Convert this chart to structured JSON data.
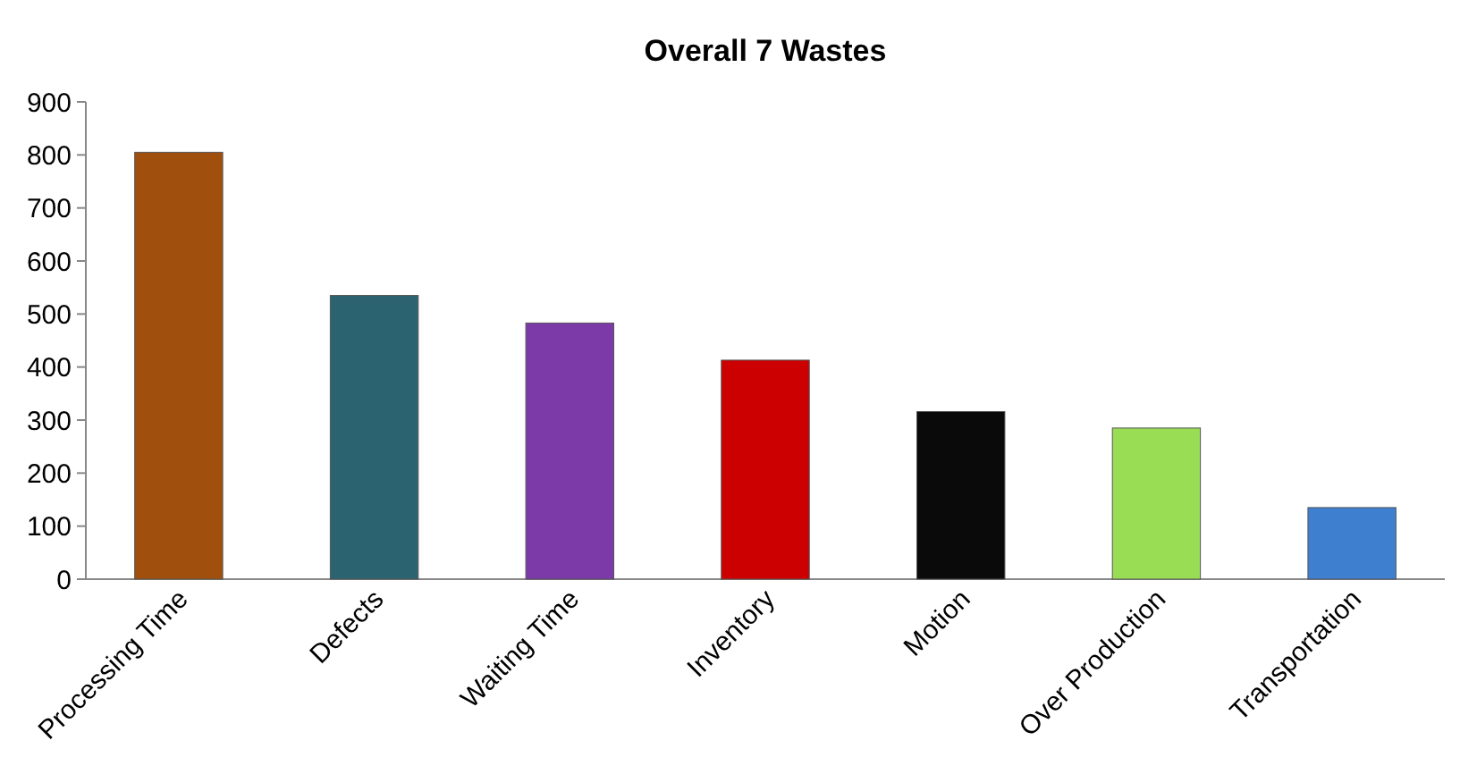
{
  "chart_data": {
    "type": "bar",
    "title": "Overall 7 Wastes",
    "categories": [
      "Processing Time",
      "Defects",
      "Waiting Time",
      "Inventory",
      "Motion",
      "Over Production",
      "Transportation"
    ],
    "values": [
      805,
      535,
      483,
      413,
      316,
      285,
      135
    ],
    "colors": [
      "#a0500c",
      "#2b6470",
      "#7b3aa8",
      "#cc0000",
      "#0a0a0a",
      "#99dd55",
      "#3f7fcf"
    ],
    "ylim": [
      0,
      900
    ],
    "yticks": [
      0,
      100,
      200,
      300,
      400,
      500,
      600,
      700,
      800,
      900
    ],
    "grid": false
  }
}
